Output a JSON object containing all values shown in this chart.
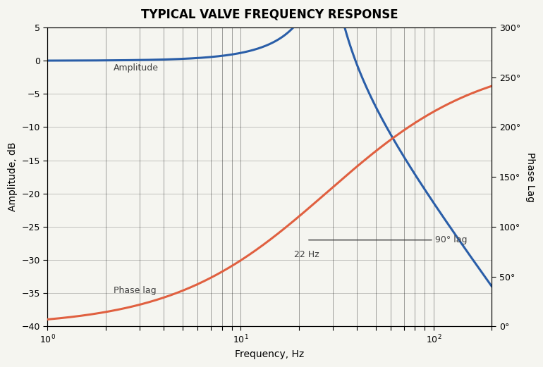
{
  "title": "TYPICAL VALVE FREQUENCY RESPONSE",
  "xlabel": "Frequency, Hz",
  "ylabel_left": "Amplitude, dB",
  "ylabel_right": "Phase Lag",
  "amplitude_color": "#2a5ea8",
  "phase_color": "#e06040",
  "annotation_color": "#404040",
  "background_color": "#f5f5f0",
  "ylim_left": [
    -40,
    5
  ],
  "ylim_right": [
    0,
    300
  ],
  "xlim": [
    1,
    200
  ],
  "freq_ticks": [
    1,
    10,
    100
  ],
  "freq_tick_labels": [
    "1",
    "10",
    "100"
  ],
  "left_yticks": [
    -40,
    -35,
    -30,
    -25,
    -20,
    -15,
    -10,
    -5,
    0,
    5
  ],
  "right_yticks": [
    0,
    50,
    100,
    150,
    200,
    250,
    300
  ],
  "right_ytick_labels": [
    "0°",
    "50°",
    "100°",
    "150°",
    "200°",
    "250°",
    "300°"
  ],
  "annotation_hz_label": "22 Hz",
  "annotation_hz": 22,
  "annotation_lag_label": "90° lag",
  "annotation_lag_db": -27,
  "title_fontsize": 12,
  "label_fontsize": 10,
  "tick_fontsize": 9
}
